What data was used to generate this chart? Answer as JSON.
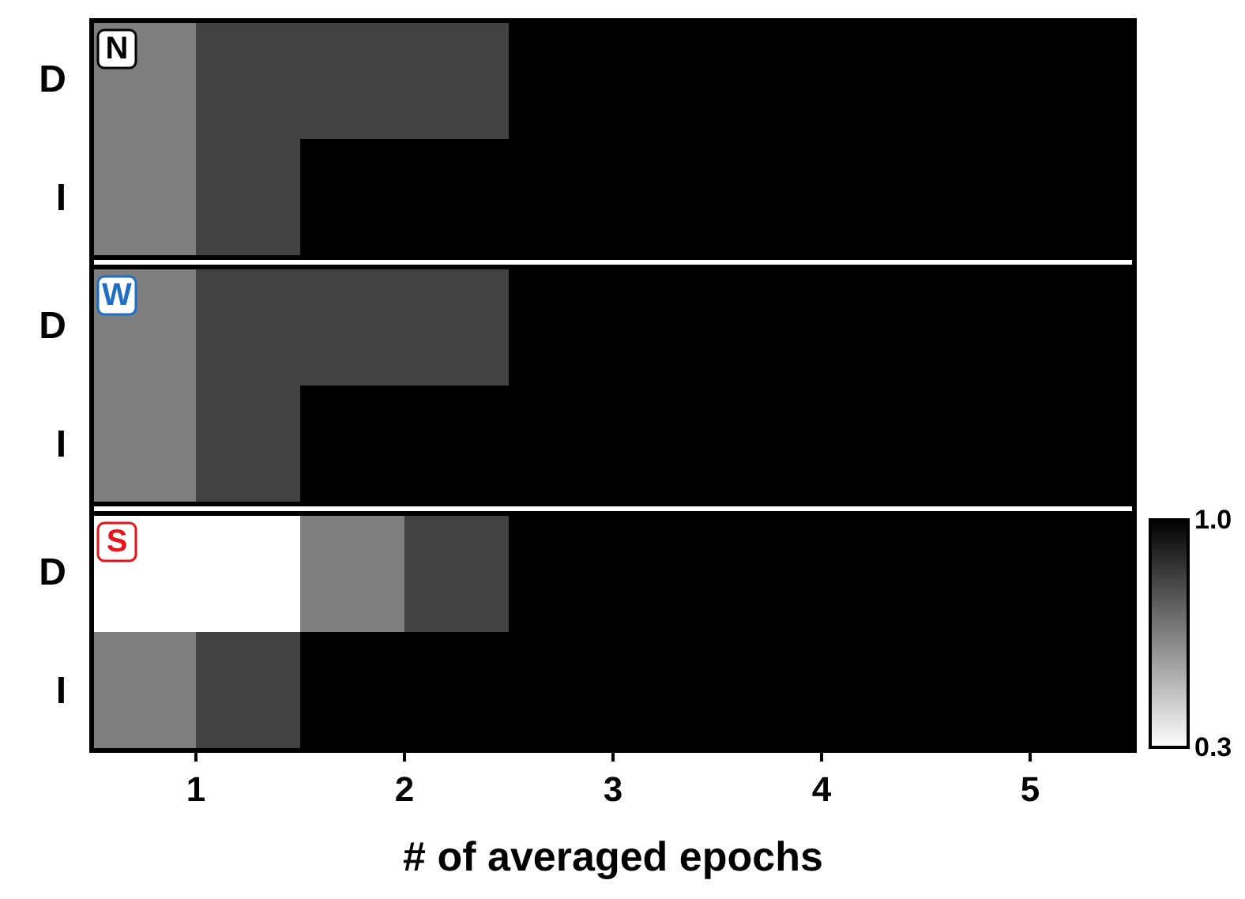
{
  "chart_data": {
    "type": "heatmap",
    "annotations": [
      "N",
      "W",
      "S"
    ],
    "xlabel": "# of averaged epochs",
    "x": [
      0.75,
      1.25,
      1.75,
      2.25,
      2.75,
      3.25,
      3.75,
      4.25,
      4.75,
      5.25
    ],
    "xlim": [
      0.5,
      5.5
    ],
    "xticks": [
      1,
      2,
      3,
      4,
      5
    ],
    "y_categories": [
      "D",
      "I",
      "D",
      "I",
      "D",
      "I"
    ],
    "clim": [
      0.3,
      1.0
    ],
    "cticks": [
      {
        "value": 0.3,
        "label": "0.3"
      },
      {
        "value": 1.0,
        "label": "1.0"
      }
    ],
    "cells": [
      [
        0.65,
        0.82,
        0.82,
        0.82,
        1.0,
        1.0,
        1.0,
        1.0,
        1.0,
        1.0
      ],
      [
        0.65,
        0.82,
        1.0,
        1.0,
        1.0,
        1.0,
        1.0,
        1.0,
        1.0,
        1.0
      ],
      [
        0.65,
        0.82,
        0.82,
        0.82,
        1.0,
        1.0,
        1.0,
        1.0,
        1.0,
        1.0
      ],
      [
        0.65,
        0.82,
        1.0,
        1.0,
        1.0,
        1.0,
        1.0,
        1.0,
        1.0,
        1.0
      ],
      [
        0.3,
        0.3,
        0.65,
        0.82,
        1.0,
        1.0,
        1.0,
        1.0,
        1.0,
        1.0
      ],
      [
        0.65,
        0.82,
        1.0,
        1.0,
        1.0,
        1.0,
        1.0,
        1.0,
        1.0,
        1.0
      ]
    ]
  }
}
